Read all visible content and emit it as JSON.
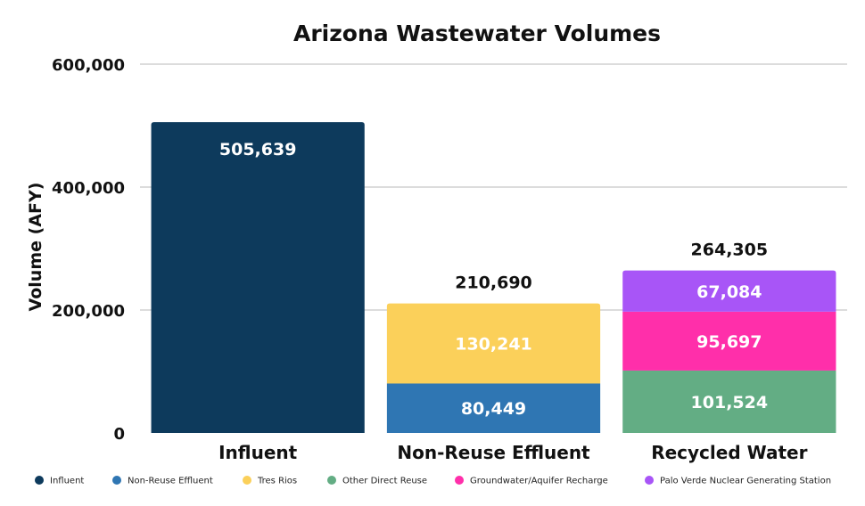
{
  "chart_data": {
    "type": "bar",
    "stacked": true,
    "title": "Arizona Wastewater Volumes",
    "xlabel": "",
    "ylabel": "Volume (AFY)",
    "ylim": [
      0,
      600000
    ],
    "yticks": [
      0,
      200000,
      400000,
      600000
    ],
    "ytick_labels": [
      "0",
      "200,000",
      "400,000",
      "600,000"
    ],
    "grid": true,
    "legend_position": "bottom",
    "categories": [
      "Influent",
      "Non-Reuse Effluent",
      "Recycled Water"
    ],
    "series": [
      {
        "name": "Influent",
        "color": "#0d3a5c",
        "values": [
          505639,
          0,
          0
        ],
        "labels": [
          "505,639",
          "",
          ""
        ]
      },
      {
        "name": "Non-Reuse Effluent",
        "color": "#2f76b3",
        "values": [
          0,
          80449,
          0
        ],
        "labels": [
          "",
          "80,449",
          ""
        ]
      },
      {
        "name": "Tres Rios",
        "color": "#fbd05a",
        "values": [
          0,
          130241,
          0
        ],
        "labels": [
          "",
          "130,241",
          ""
        ]
      },
      {
        "name": "Other Direct Reuse",
        "color": "#63ad84",
        "values": [
          0,
          0,
          101524
        ],
        "labels": [
          "",
          "",
          "101,524"
        ]
      },
      {
        "name": "Groundwater/Aquifer Recharge",
        "color": "#ff2faa",
        "values": [
          0,
          0,
          95697
        ],
        "labels": [
          "",
          "",
          "95,697"
        ]
      },
      {
        "name": "Palo Verde Nuclear Generating Station",
        "color": "#a855f7",
        "values": [
          0,
          0,
          67084
        ],
        "labels": [
          "",
          "",
          "67,084"
        ]
      }
    ],
    "totals": [
      null,
      210690,
      264305
    ],
    "total_labels": [
      "",
      "210,690",
      "264,305"
    ]
  }
}
